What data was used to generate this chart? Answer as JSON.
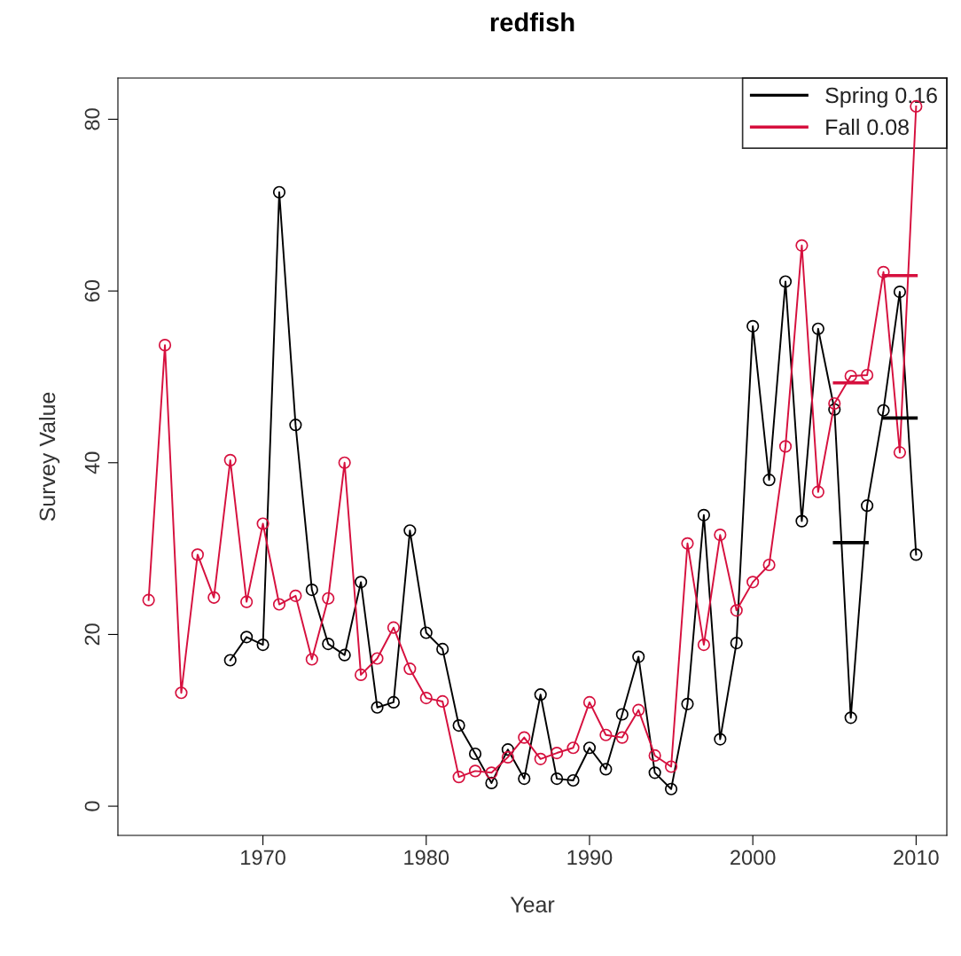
{
  "chart_data": {
    "type": "line",
    "title": "redfish",
    "xlabel": "Year",
    "ylabel": "Survey Value",
    "xlim": [
      1961.12,
      2011.88
    ],
    "ylim": [
      -3.4,
      84.8
    ],
    "xticks": [
      1970,
      1980,
      1990,
      2000,
      2010
    ],
    "yticks": [
      0,
      20,
      40,
      60,
      80
    ],
    "grid": false,
    "legend": "top right",
    "marker": "circle",
    "line_style": "solid",
    "series": [
      {
        "name": "Spring 0.16",
        "color": "#000000",
        "x": [
          1968,
          1969,
          1970,
          1971,
          1972,
          1973,
          1974,
          1975,
          1976,
          1977,
          1978,
          1979,
          1980,
          1981,
          1982,
          1983,
          1984,
          1985,
          1986,
          1987,
          1988,
          1989,
          1990,
          1991,
          1992,
          1993,
          1994,
          1995,
          1996,
          1997,
          1998,
          1999,
          2000,
          2001,
          2002,
          2003,
          2004,
          2005,
          2006,
          2007,
          2008,
          2009,
          2010
        ],
        "values": [
          17.0,
          19.7,
          18.8,
          71.5,
          44.4,
          25.2,
          18.9,
          17.6,
          26.1,
          11.5,
          12.1,
          32.1,
          20.2,
          18.3,
          9.4,
          6.1,
          2.7,
          6.6,
          3.2,
          13.0,
          3.2,
          3.0,
          6.8,
          4.3,
          10.7,
          17.4,
          3.9,
          2.0,
          11.9,
          33.9,
          7.8,
          19.0,
          55.9,
          38.0,
          61.1,
          33.2,
          55.6,
          46.2,
          10.3,
          35.0,
          46.1,
          59.9,
          29.3
        ]
      },
      {
        "name": "Fall 0.08",
        "color": "#d6103e",
        "x": [
          1963,
          1964,
          1965,
          1966,
          1967,
          1968,
          1969,
          1970,
          1971,
          1972,
          1973,
          1974,
          1975,
          1976,
          1977,
          1978,
          1979,
          1980,
          1981,
          1982,
          1983,
          1984,
          1985,
          1986,
          1987,
          1988,
          1989,
          1990,
          1991,
          1992,
          1993,
          1994,
          1995,
          1996,
          1997,
          1998,
          1999,
          2000,
          2001,
          2002,
          2003,
          2004,
          2005,
          2006,
          2007,
          2008,
          2009,
          2010
        ],
        "values": [
          24.0,
          53.7,
          13.2,
          29.3,
          24.3,
          40.3,
          23.8,
          32.9,
          23.5,
          24.5,
          17.1,
          24.2,
          40.0,
          15.3,
          17.2,
          20.8,
          16.0,
          12.6,
          12.2,
          3.4,
          4.1,
          3.9,
          5.7,
          8.0,
          5.5,
          6.2,
          6.8,
          12.1,
          8.3,
          8.0,
          11.2,
          5.9,
          4.6,
          30.6,
          18.8,
          31.6,
          22.8,
          26.1,
          28.1,
          41.9,
          65.3,
          36.6,
          46.9,
          50.1,
          50.2,
          62.2,
          41.2,
          81.5
        ]
      },
      {
        "type": "line",
        "marker": "none",
        "color": "#000000",
        "x": [
          2005,
          2007
        ],
        "values": [
          30.7,
          30.7
        ]
      },
      {
        "type": "line",
        "marker": "none",
        "color": "#000000",
        "x": [
          2008,
          2010
        ],
        "values": [
          45.2,
          45.2
        ]
      },
      {
        "type": "line",
        "marker": "none",
        "color": "#d6103e",
        "x": [
          2005,
          2007
        ],
        "values": [
          49.3,
          49.3
        ]
      },
      {
        "type": "line",
        "marker": "none",
        "color": "#d6103e",
        "x": [
          2008,
          2010
        ],
        "values": [
          61.8,
          61.8
        ]
      }
    ]
  }
}
